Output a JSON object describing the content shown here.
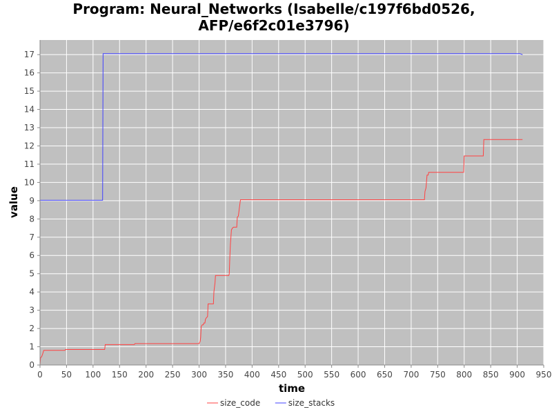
{
  "chart_data": {
    "type": "line",
    "title_lines": [
      "Program: Neural_Networks (Isabelle/c197f6bd0526,",
      "AFP/e6f2c01e3796)"
    ],
    "xlabel": "time",
    "ylabel": "value",
    "xlim": [
      0,
      950
    ],
    "ylim": [
      0,
      17.8
    ],
    "xticks": [
      "0",
      "50",
      "100",
      "150",
      "200",
      "250",
      "300",
      "350",
      "400",
      "450",
      "500",
      "550",
      "600",
      "650",
      "700",
      "750",
      "800",
      "850",
      "900",
      "950"
    ],
    "yticks": [
      "0",
      "1",
      "2",
      "3",
      "4",
      "5",
      "6",
      "7",
      "8",
      "9",
      "10",
      "11",
      "12",
      "13",
      "14",
      "15",
      "16",
      "17"
    ],
    "grid": true,
    "legend_position": "bottom",
    "background_color": "#c0c0c0",
    "series": [
      {
        "name": "size_code",
        "color": "#ff4040",
        "points": [
          [
            0,
            0
          ],
          [
            1,
            0.4
          ],
          [
            3,
            0.45
          ],
          [
            5,
            0.6
          ],
          [
            7,
            0.8
          ],
          [
            47,
            0.8
          ],
          [
            48,
            0.85
          ],
          [
            122,
            0.85
          ],
          [
            123,
            1.12
          ],
          [
            178,
            1.12
          ],
          [
            179,
            1.17
          ],
          [
            300,
            1.17
          ],
          [
            302,
            1.3
          ],
          [
            303,
            1.5
          ],
          [
            304,
            2.1
          ],
          [
            306,
            2.2
          ],
          [
            308,
            2.2
          ],
          [
            309,
            2.3
          ],
          [
            311,
            2.3
          ],
          [
            312,
            2.5
          ],
          [
            314,
            2.6
          ],
          [
            316,
            2.65
          ],
          [
            317,
            3.35
          ],
          [
            327,
            3.35
          ],
          [
            328,
            4.0
          ],
          [
            330,
            4.5
          ],
          [
            331,
            4.9
          ],
          [
            356,
            4.9
          ],
          [
            357,
            5.0
          ],
          [
            358,
            5.9
          ],
          [
            359,
            6.6
          ],
          [
            361,
            7.4
          ],
          [
            363,
            7.5
          ],
          [
            365,
            7.55
          ],
          [
            371,
            7.55
          ],
          [
            372,
            8.1
          ],
          [
            374,
            8.15
          ],
          [
            376,
            8.6
          ],
          [
            378,
            9.05
          ],
          [
            725,
            9.05
          ],
          [
            726,
            9.5
          ],
          [
            728,
            9.7
          ],
          [
            730,
            10.4
          ],
          [
            732,
            10.4
          ],
          [
            733,
            10.55
          ],
          [
            799,
            10.55
          ],
          [
            800,
            11.45
          ],
          [
            836,
            11.45
          ],
          [
            837,
            12.35
          ],
          [
            910,
            12.35
          ]
        ]
      },
      {
        "name": "size_stacks",
        "color": "#4040ff",
        "points": [
          [
            0,
            9.02
          ],
          [
            118,
            9.02
          ],
          [
            119,
            17.05
          ],
          [
            905,
            17.05
          ],
          [
            910,
            17.0
          ]
        ]
      }
    ]
  }
}
